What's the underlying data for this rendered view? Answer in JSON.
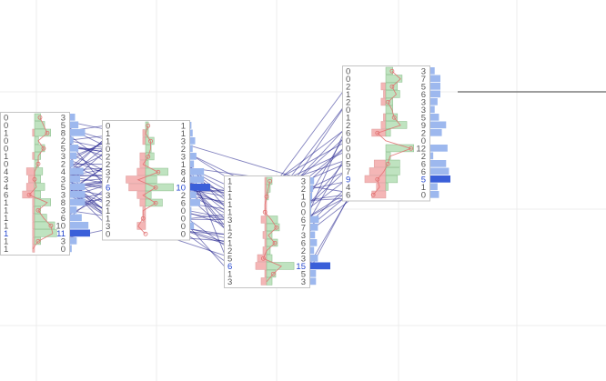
{
  "chart_data": {
    "type": "footprint",
    "grid": true,
    "colors": {
      "bid": "#f4b6b6",
      "ask": "#bfe3c0",
      "volume": "#9db8ee",
      "volume_max": "#3a5fd9",
      "delta_line": "#e07070",
      "flow_line": "#1e1e8c",
      "frame": "#c4c4c4",
      "gridline": "#ececec",
      "ref_line": "#7f7f7f",
      "highlight_text": "#2244cc"
    },
    "bars": [
      {
        "bid": [
          "0",
          "0",
          "1",
          "0",
          "0",
          "1",
          "0",
          "4",
          "3",
          "4",
          "6",
          "1",
          "1",
          "1",
          "1",
          "1",
          "1",
          "1"
        ],
        "ask": [
          "3",
          "5",
          "8",
          "2",
          "5",
          "3",
          "2",
          "4",
          "3",
          "5",
          "3",
          "8",
          "3",
          "6",
          "10",
          "11",
          "3",
          "0"
        ],
        "highlight_row": 15
      },
      {
        "bid": [
          "0",
          "1",
          "1",
          "0",
          "2",
          "2",
          "3",
          "7",
          "6",
          "3",
          "2",
          "1",
          "1",
          "3",
          "0"
        ],
        "ask": [
          "1",
          "1",
          "3",
          "2",
          "3",
          "1",
          "8",
          "4",
          "10",
          "2",
          "6",
          "0",
          "0",
          "0",
          "0"
        ],
        "highlight_row": 8
      },
      {
        "bid": [
          "1",
          "1",
          "1",
          "1",
          "1",
          "3",
          "1",
          "2",
          "1",
          "2",
          "5",
          "6",
          "1",
          "3"
        ],
        "ask": [
          "3",
          "2",
          "1",
          "0",
          "0",
          "6",
          "7",
          "3",
          "6",
          "2",
          "3",
          "15",
          "5",
          "3"
        ],
        "highlight_row": 11
      },
      {
        "bid": [
          "0",
          "0",
          "2",
          "1",
          "2",
          "0",
          "1",
          "2",
          "6",
          "0",
          "0",
          "0",
          "5",
          "7",
          "9",
          "4",
          "6"
        ],
        "ask": [
          "3",
          "7",
          "5",
          "6",
          "3",
          "3",
          "5",
          "9",
          "2",
          "0",
          "12",
          "2",
          "6",
          "6",
          "5",
          "1",
          "0"
        ],
        "highlight_row": 14
      }
    ]
  }
}
